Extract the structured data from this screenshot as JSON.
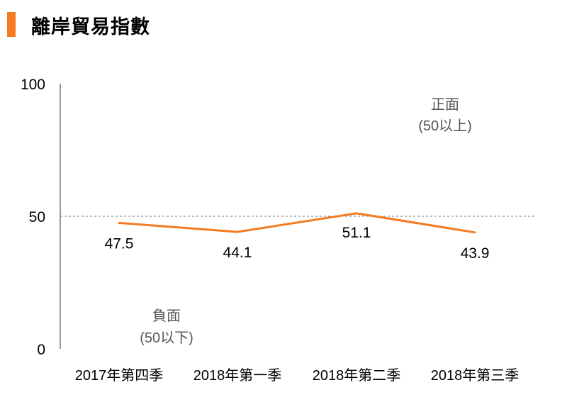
{
  "title": "離岸貿易指數",
  "colors": {
    "accent": "#f47b20",
    "line": "#f47b20",
    "axis": "#777777",
    "text": "#000000",
    "annotation": "#555555"
  },
  "chart_data": {
    "type": "line",
    "title": "離岸貿易指數",
    "categories": [
      "2017年第四季",
      "2018年第一季",
      "2018年第二季",
      "2018年第三季"
    ],
    "series": [
      {
        "values": [
          47.5,
          44.1,
          51.1,
          43.9
        ]
      }
    ],
    "data_labels": [
      "47.5",
      "44.1",
      "51.1",
      "43.9"
    ],
    "ylim": [
      0,
      100
    ],
    "yticks": [
      "0",
      "50",
      "100"
    ],
    "reference_line": {
      "value": 50,
      "style": "dashed"
    },
    "annotations": {
      "positive": {
        "label": "正面",
        "sub": "(50以上)"
      },
      "negative": {
        "label": "負面",
        "sub": "(50以下)"
      }
    },
    "grid": false,
    "legend": "none"
  }
}
